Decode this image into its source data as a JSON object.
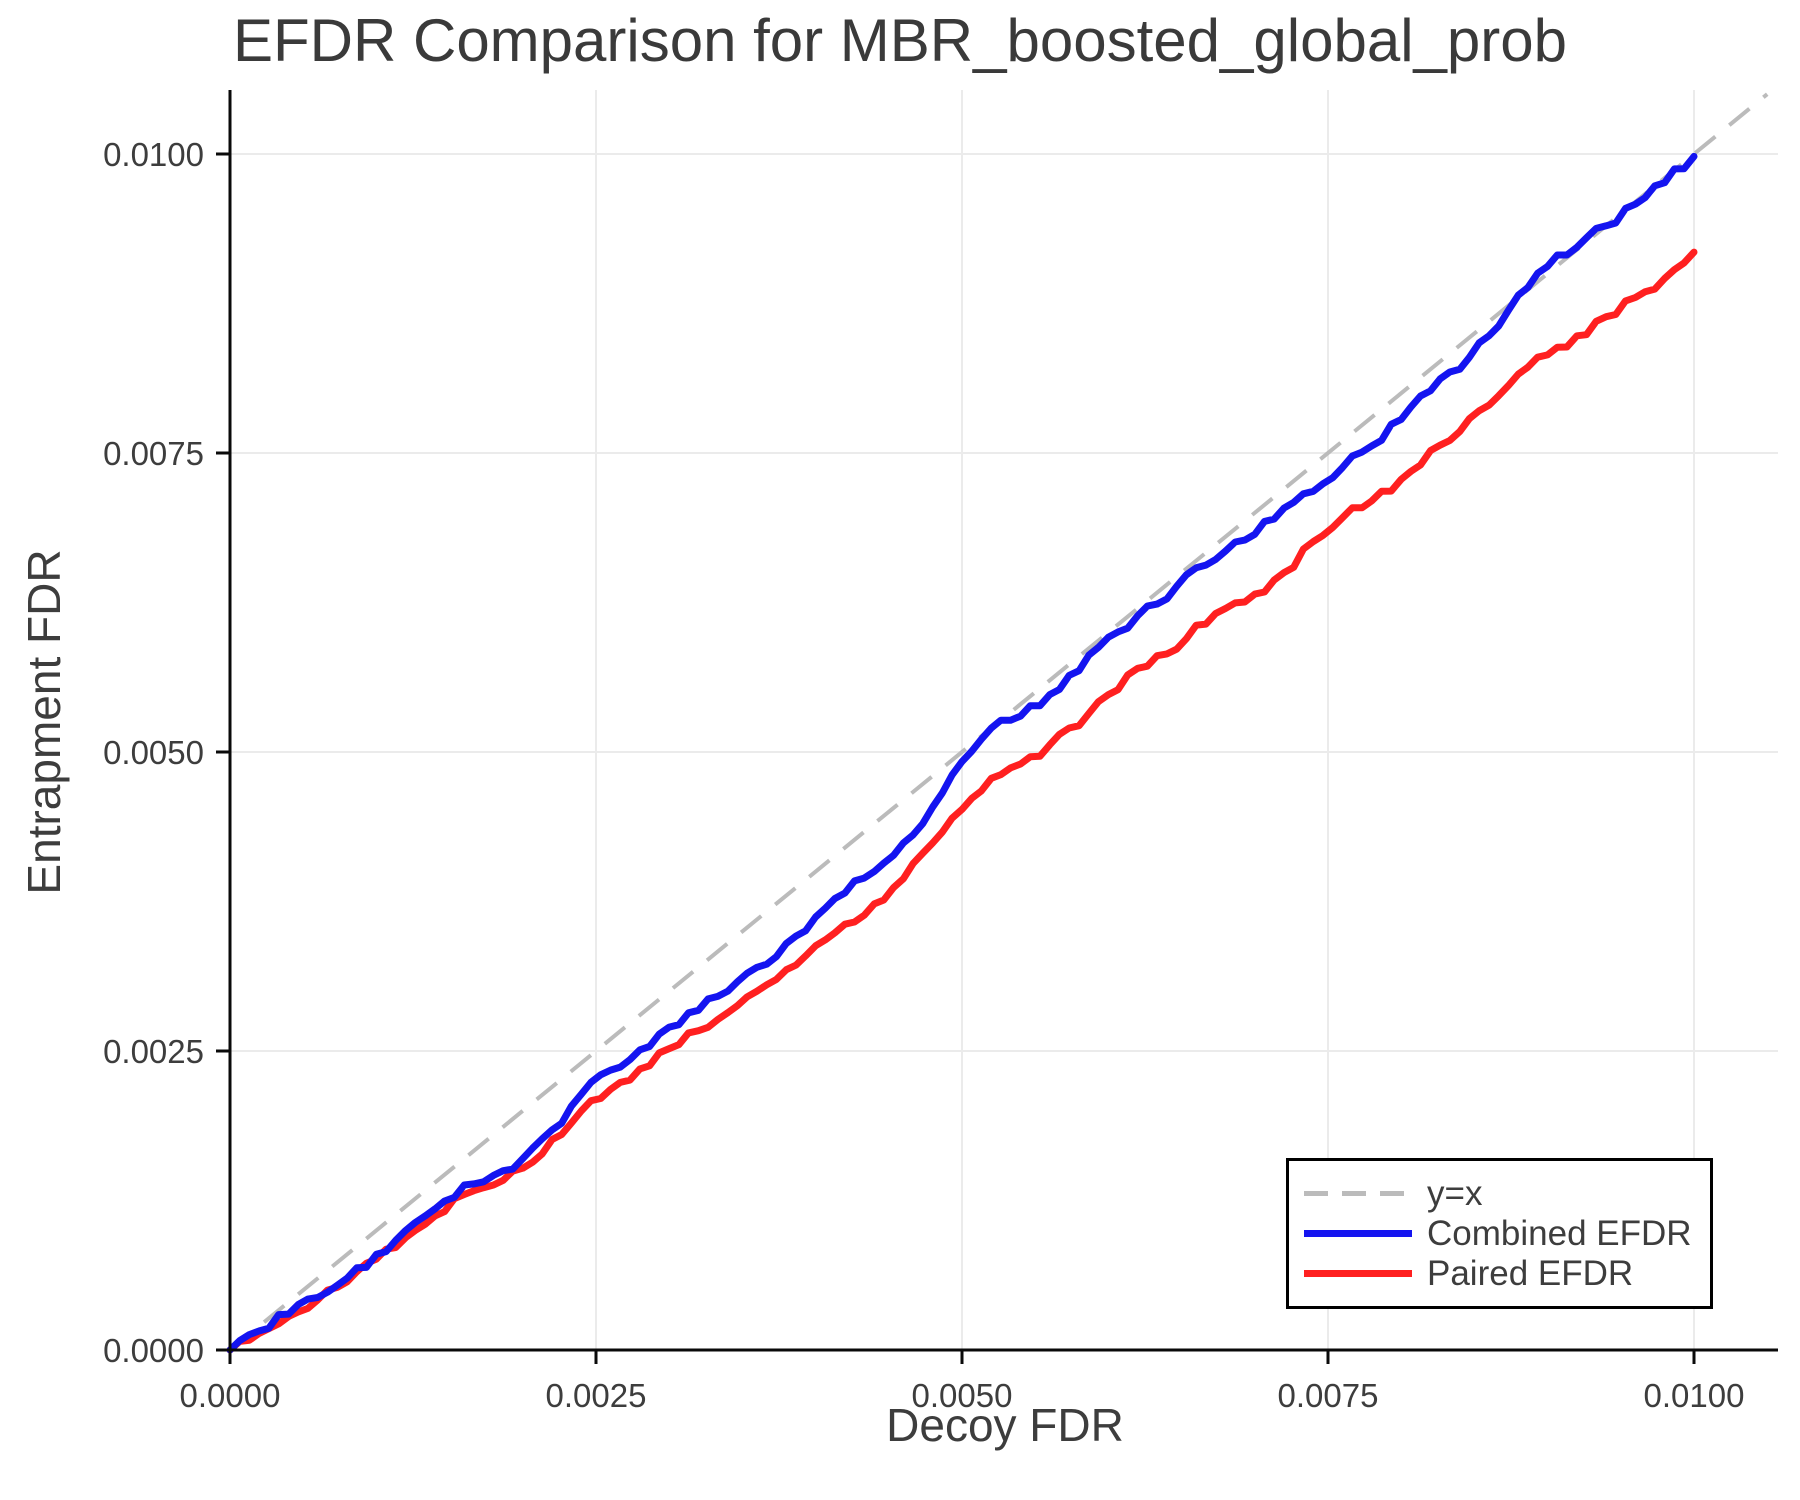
{
  "chart_data": {
    "type": "line",
    "title": "EFDR Comparison for MBR_boosted_global_prob",
    "xlabel": "Decoy FDR",
    "ylabel": "Entrapment FDR",
    "xlim": [
      0.0,
      0.0106
    ],
    "ylim": [
      0.0,
      0.0105
    ],
    "grid": true,
    "legend_position": "lower right",
    "x_ticks": [
      0.0,
      0.0025,
      0.005,
      0.0075,
      0.01
    ],
    "x_tick_labels": [
      "0.0000",
      "0.0025",
      "0.0050",
      "0.0075",
      "0.0100"
    ],
    "y_ticks": [
      0.0,
      0.0025,
      0.005,
      0.0075,
      0.01
    ],
    "y_tick_labels": [
      "0.0000",
      "0.0025",
      "0.0050",
      "0.0075",
      "0.0100"
    ],
    "colors": {
      "identity_line": "#bbbbbb",
      "combined": "#1414f0",
      "paired": "#ff2020",
      "grid": "#ebebeb",
      "spine": "#0a0a0a",
      "text": "#3d3d3d"
    },
    "series": [
      {
        "name": "y=x",
        "style": "dashed",
        "color": "#bbbbbb",
        "points": [
          [
            0.0,
            0.0
          ],
          [
            0.0105,
            0.0105
          ]
        ]
      },
      {
        "name": "Combined EFDR",
        "style": "solid",
        "color": "#1414f0",
        "points": [
          [
            0.0,
            0.0
          ],
          [
            0.0002,
            0.00016
          ],
          [
            0.0004,
            0.0003
          ],
          [
            0.0006,
            0.00044
          ],
          [
            0.0008,
            0.0006
          ],
          [
            0.001,
            0.0008
          ],
          [
            0.0012,
            0.001
          ],
          [
            0.0014,
            0.00118
          ],
          [
            0.0016,
            0.00138
          ],
          [
            0.0018,
            0.00146
          ],
          [
            0.002,
            0.0016
          ],
          [
            0.0022,
            0.00184
          ],
          [
            0.0024,
            0.00214
          ],
          [
            0.0026,
            0.00234
          ],
          [
            0.0028,
            0.00251
          ],
          [
            0.003,
            0.0027
          ],
          [
            0.0032,
            0.00284
          ],
          [
            0.0034,
            0.003
          ],
          [
            0.0036,
            0.0032
          ],
          [
            0.0038,
            0.0034
          ],
          [
            0.004,
            0.00362
          ],
          [
            0.0042,
            0.00382
          ],
          [
            0.0044,
            0.004
          ],
          [
            0.0046,
            0.00424
          ],
          [
            0.0048,
            0.00454
          ],
          [
            0.005,
            0.00492
          ],
          [
            0.0052,
            0.0052
          ],
          [
            0.0054,
            0.0053
          ],
          [
            0.0056,
            0.00548
          ],
          [
            0.0058,
            0.00568
          ],
          [
            0.006,
            0.00596
          ],
          [
            0.0062,
            0.00614
          ],
          [
            0.0064,
            0.00628
          ],
          [
            0.0066,
            0.00654
          ],
          [
            0.0068,
            0.00668
          ],
          [
            0.007,
            0.00682
          ],
          [
            0.0072,
            0.00704
          ],
          [
            0.0074,
            0.00718
          ],
          [
            0.0076,
            0.00738
          ],
          [
            0.0078,
            0.00756
          ],
          [
            0.008,
            0.00778
          ],
          [
            0.0082,
            0.00802
          ],
          [
            0.0084,
            0.0082
          ],
          [
            0.0086,
            0.00848
          ],
          [
            0.0088,
            0.00882
          ],
          [
            0.009,
            0.00906
          ],
          [
            0.0092,
            0.00922
          ],
          [
            0.0094,
            0.0094
          ],
          [
            0.0096,
            0.00958
          ],
          [
            0.0098,
            0.00976
          ],
          [
            0.01,
            0.00998
          ]
        ]
      },
      {
        "name": "Paired EFDR",
        "style": "solid",
        "color": "#ff2020",
        "points": [
          [
            0.0,
            0.0
          ],
          [
            0.0002,
            0.00014
          ],
          [
            0.0004,
            0.00028
          ],
          [
            0.0006,
            0.00042
          ],
          [
            0.0008,
            0.00057
          ],
          [
            0.001,
            0.00076
          ],
          [
            0.0012,
            0.00094
          ],
          [
            0.0014,
            0.00112
          ],
          [
            0.0016,
            0.0013
          ],
          [
            0.0018,
            0.00138
          ],
          [
            0.002,
            0.00152
          ],
          [
            0.0022,
            0.00176
          ],
          [
            0.0024,
            0.002
          ],
          [
            0.0026,
            0.00218
          ],
          [
            0.0028,
            0.00235
          ],
          [
            0.003,
            0.00252
          ],
          [
            0.0032,
            0.00267
          ],
          [
            0.0034,
            0.00282
          ],
          [
            0.0036,
            0.003
          ],
          [
            0.0038,
            0.00318
          ],
          [
            0.004,
            0.00338
          ],
          [
            0.0042,
            0.00356
          ],
          [
            0.0044,
            0.00373
          ],
          [
            0.0046,
            0.00394
          ],
          [
            0.0048,
            0.00424
          ],
          [
            0.005,
            0.00452
          ],
          [
            0.0052,
            0.00478
          ],
          [
            0.0054,
            0.0049
          ],
          [
            0.0056,
            0.00506
          ],
          [
            0.0058,
            0.00522
          ],
          [
            0.006,
            0.00548
          ],
          [
            0.0062,
            0.0057
          ],
          [
            0.0064,
            0.00582
          ],
          [
            0.0066,
            0.00606
          ],
          [
            0.0068,
            0.0062
          ],
          [
            0.007,
            0.00632
          ],
          [
            0.0072,
            0.0065
          ],
          [
            0.0074,
            0.00676
          ],
          [
            0.0076,
            0.00696
          ],
          [
            0.0078,
            0.0071
          ],
          [
            0.008,
            0.00728
          ],
          [
            0.0082,
            0.00752
          ],
          [
            0.0084,
            0.00768
          ],
          [
            0.0086,
            0.0079
          ],
          [
            0.0088,
            0.00816
          ],
          [
            0.009,
            0.00832
          ],
          [
            0.0092,
            0.00848
          ],
          [
            0.0094,
            0.00864
          ],
          [
            0.0096,
            0.0088
          ],
          [
            0.0098,
            0.00896
          ],
          [
            0.01,
            0.00918
          ]
        ]
      }
    ]
  }
}
